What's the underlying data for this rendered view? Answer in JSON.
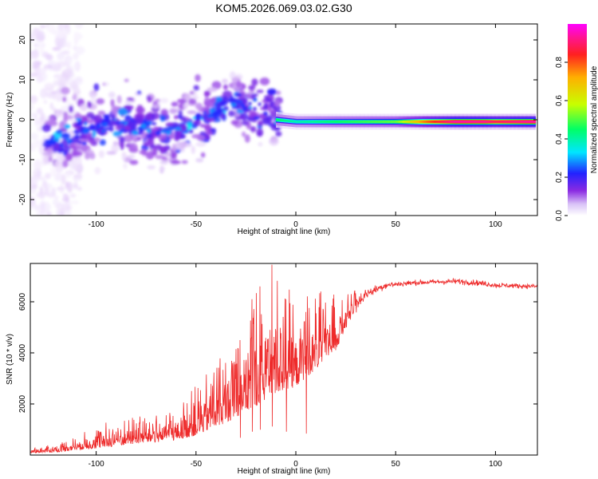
{
  "title": "KOM5.2026.069.03.02.G30",
  "colors": {
    "snr_line": "#ee2a2a",
    "colormap": [
      "#ffffff",
      "#e8d6fb",
      "#8a2be2",
      "#2222ff",
      "#00e6ff",
      "#00ff66",
      "#c8ff00",
      "#ffb000",
      "#ff2020",
      "#ff1493",
      "#ff00ff"
    ]
  },
  "chart_data": [
    {
      "type": "heatmap",
      "xlabel": "Height of straight line (km)",
      "ylabel": "Frequency (Hz)",
      "xlim": [
        -133,
        121
      ],
      "ylim": [
        -24,
        24
      ],
      "xticks": [
        -100,
        -50,
        0,
        50,
        100
      ],
      "yticks": [
        -20,
        -10,
        0,
        10,
        20
      ],
      "xtick_labels": [
        "-100",
        "-50",
        "0",
        "50",
        "100"
      ],
      "ytick_labels": [
        "-20",
        "-10",
        "0",
        "10",
        "20"
      ],
      "colorbar": {
        "label": "Normalized spectral amplitude",
        "range": [
          0,
          1
        ],
        "ticks": [
          0.0,
          0.2,
          0.4,
          0.6,
          0.8
        ],
        "tick_labels": [
          "0.0",
          "0.2",
          "0.4",
          "0.6",
          "0.8"
        ]
      },
      "ridge": [
        {
          "x": -120,
          "f": -5
        },
        {
          "x": -110,
          "f": -3
        },
        {
          "x": -100,
          "f": -2
        },
        {
          "x": -90,
          "f": -1.5
        },
        {
          "x": -80,
          "f": -1
        },
        {
          "x": -70,
          "f": -2
        },
        {
          "x": -60,
          "f": -3
        },
        {
          "x": -50,
          "f": -1
        },
        {
          "x": -40,
          "f": 2
        },
        {
          "x": -30,
          "f": 5
        },
        {
          "x": -20,
          "f": 2
        },
        {
          "x": -10,
          "f": 0
        },
        {
          "x": 0,
          "f": -0.5
        },
        {
          "x": 120,
          "f": -0.5
        }
      ],
      "ridge_amplitude": [
        {
          "x": -10,
          "a": 0.5
        },
        {
          "x": 0,
          "a": 0.45
        },
        {
          "x": 20,
          "a": 0.5
        },
        {
          "x": 50,
          "a": 0.55
        },
        {
          "x": 65,
          "a": 0.75
        },
        {
          "x": 80,
          "a": 0.92
        },
        {
          "x": 95,
          "a": 0.9
        },
        {
          "x": 100,
          "a": 0.85
        },
        {
          "x": 118,
          "a": 0.92
        }
      ]
    },
    {
      "type": "line",
      "xlabel": "Height of straight line (km)",
      "ylabel": "SNR (10 * v/v)",
      "xlim": [
        -133,
        121
      ],
      "ylim": [
        0,
        7500
      ],
      "xticks": [
        -100,
        -50,
        0,
        50,
        100
      ],
      "yticks": [
        2000,
        4000,
        6000
      ],
      "xtick_labels": [
        "-100",
        "-50",
        "0",
        "50",
        "100"
      ],
      "ytick_labels": [
        "2000",
        "4000",
        "6000"
      ],
      "envelope": [
        {
          "x": -133,
          "base": 150,
          "spread": 100
        },
        {
          "x": -120,
          "base": 200,
          "spread": 150
        },
        {
          "x": -110,
          "base": 350,
          "spread": 250
        },
        {
          "x": -100,
          "base": 500,
          "spread": 400
        },
        {
          "x": -90,
          "base": 650,
          "spread": 500
        },
        {
          "x": -80,
          "base": 750,
          "spread": 500
        },
        {
          "x": -70,
          "base": 800,
          "spread": 500
        },
        {
          "x": -60,
          "base": 950,
          "spread": 600
        },
        {
          "x": -50,
          "base": 1300,
          "spread": 900
        },
        {
          "x": -40,
          "base": 1800,
          "spread": 1200
        },
        {
          "x": -30,
          "base": 2500,
          "spread": 1700
        },
        {
          "x": -20,
          "base": 3300,
          "spread": 2300
        },
        {
          "x": -10,
          "base": 3700,
          "spread": 2200
        },
        {
          "x": 0,
          "base": 3700,
          "spread": 1700
        },
        {
          "x": 10,
          "base": 4200,
          "spread": 1400
        },
        {
          "x": 20,
          "base": 4700,
          "spread": 1000
        },
        {
          "x": 25,
          "base": 5300,
          "spread": 600
        },
        {
          "x": 30,
          "base": 5900,
          "spread": 350
        },
        {
          "x": 35,
          "base": 6300,
          "spread": 200
        },
        {
          "x": 45,
          "base": 6650,
          "spread": 130
        },
        {
          "x": 60,
          "base": 6750,
          "spread": 100
        },
        {
          "x": 80,
          "base": 6800,
          "spread": 110
        },
        {
          "x": 90,
          "base": 6750,
          "spread": 110
        },
        {
          "x": 100,
          "base": 6650,
          "spread": 100
        },
        {
          "x": 121,
          "base": 6600,
          "spread": 90
        }
      ],
      "peaks": [
        {
          "x": -12,
          "y": 7450
        },
        {
          "x": -18,
          "y": 6600
        },
        {
          "x": -22,
          "y": 6100
        },
        {
          "x": -28,
          "y": 4500
        },
        {
          "x": -5,
          "y": 6100
        },
        {
          "x": 5,
          "y": 5600
        }
      ]
    }
  ]
}
